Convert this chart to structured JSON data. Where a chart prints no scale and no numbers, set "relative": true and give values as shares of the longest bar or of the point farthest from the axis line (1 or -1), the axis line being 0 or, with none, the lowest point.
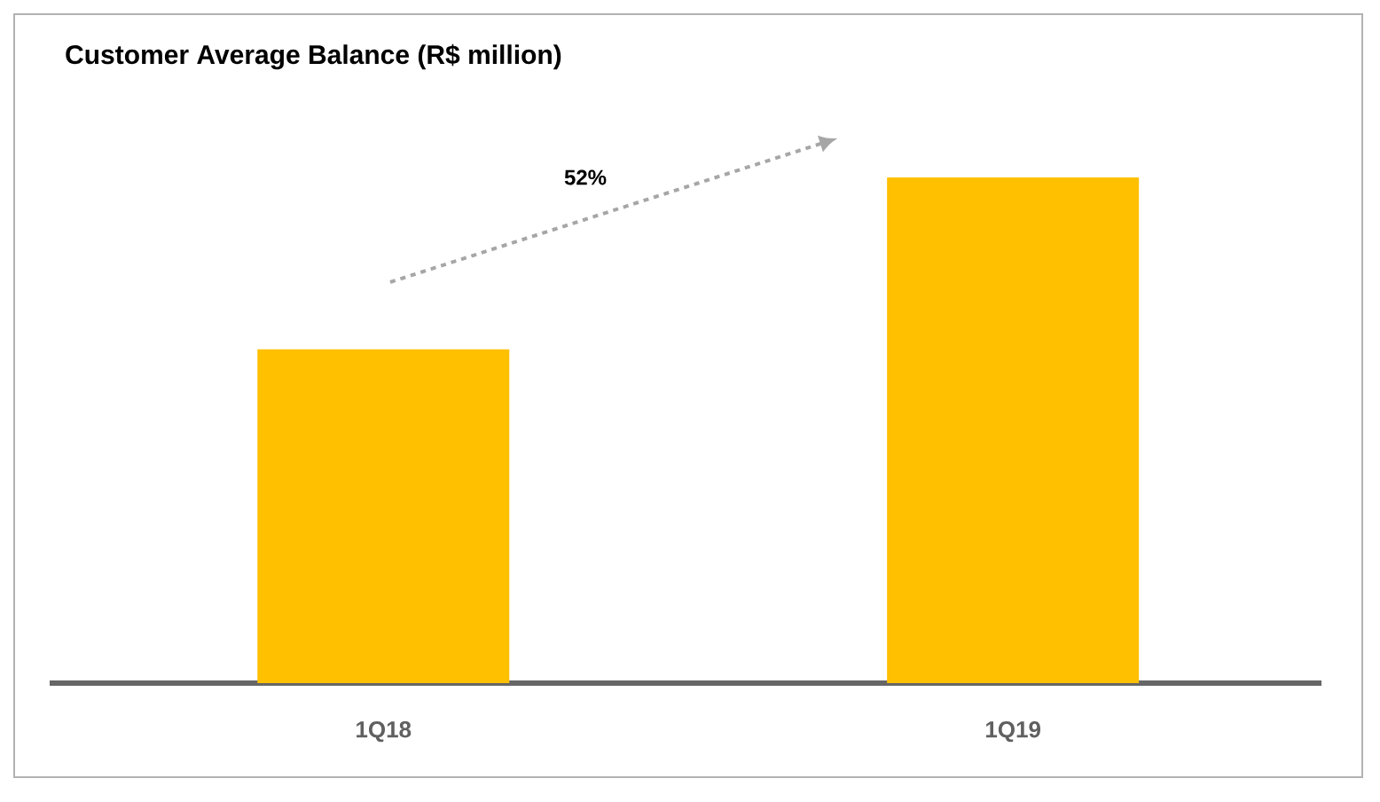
{
  "chart_data": {
    "type": "bar",
    "title": "Customer Average Balance (R$ million)",
    "categories": [
      "1Q18",
      "1Q19"
    ],
    "values": [
      0.66,
      1
    ],
    "color": "#ffc000",
    "relative": true,
    "annotations": [
      "52%"
    ]
  }
}
